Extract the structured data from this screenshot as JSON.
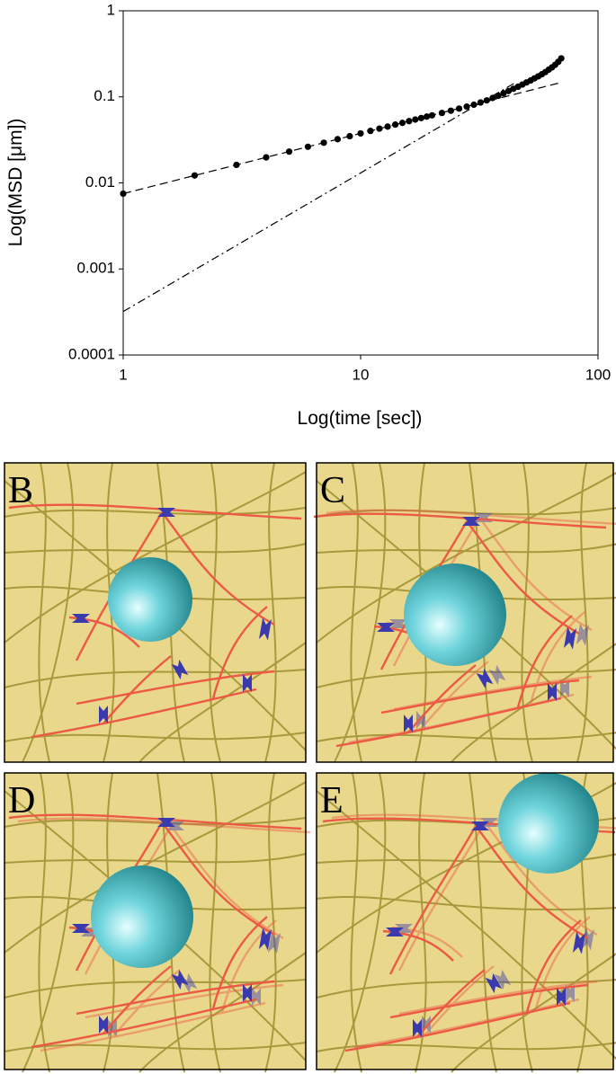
{
  "chart_data": {
    "type": "line",
    "xlabel": "Log(time [sec])",
    "ylabel": "Log(MSD [μm])",
    "log_x": true,
    "log_y": true,
    "xlim": [
      1,
      100
    ],
    "ylim": [
      0.0001,
      1
    ],
    "xticks": [
      1,
      10,
      100
    ],
    "yticks": [
      0.0001,
      0.001,
      0.01,
      0.1,
      1
    ],
    "series": [
      {
        "color": "#000000",
        "style": "markers",
        "x": [
          1,
          2,
          3,
          4,
          5,
          6,
          7,
          8,
          9,
          10,
          11,
          12,
          13,
          14,
          15,
          16,
          17,
          18,
          19,
          20,
          22,
          24,
          26,
          28,
          30,
          32,
          34,
          36,
          38,
          40,
          42,
          44,
          46,
          48,
          50,
          52,
          54,
          56,
          58,
          60,
          62,
          64,
          66,
          68,
          70
        ],
        "values": [
          0.0075,
          0.0122,
          0.0162,
          0.0198,
          0.0231,
          0.0263,
          0.0293,
          0.0322,
          0.0349,
          0.0376,
          0.0402,
          0.0427,
          0.0451,
          0.0476,
          0.0498,
          0.0522,
          0.0545,
          0.0567,
          0.0589,
          0.061,
          0.065,
          0.069,
          0.073,
          0.077,
          0.081,
          0.086,
          0.091,
          0.097,
          0.103,
          0.11,
          0.117,
          0.124,
          0.131,
          0.139,
          0.147,
          0.155,
          0.164,
          0.173,
          0.183,
          0.194,
          0.207,
          0.22,
          0.236,
          0.255,
          0.28
        ]
      },
      {
        "color": "#000000",
        "style": "dashed",
        "x": [
          1,
          70
        ],
        "values": [
          0.0075,
          0.147
        ]
      },
      {
        "color": "#000000",
        "style": "dash-dot",
        "x": [
          1,
          45
        ],
        "values": [
          0.00032,
          0.147
        ]
      }
    ]
  },
  "panels": [
    "B",
    "C",
    "D",
    "E"
  ]
}
